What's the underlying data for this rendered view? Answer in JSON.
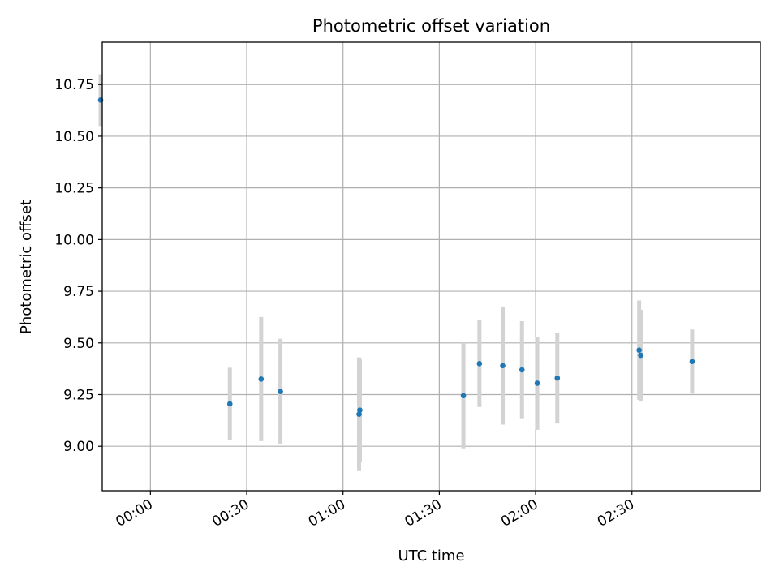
{
  "chart_data": {
    "type": "scatter",
    "title": "Photometric offset variation",
    "xlabel": "UTC time",
    "ylabel": "Photometric offset",
    "grid": true,
    "x_time_range": [
      "-00:15:00",
      "03:10:00"
    ],
    "ylim": [
      8.785,
      10.955
    ],
    "x_ticks": [
      {
        "time": "00:00:00",
        "label": "00:00"
      },
      {
        "time": "00:30:00",
        "label": "00:30"
      },
      {
        "time": "01:00:00",
        "label": "01:00"
      },
      {
        "time": "01:30:00",
        "label": "01:30"
      },
      {
        "time": "02:00:00",
        "label": "02:00"
      },
      {
        "time": "02:30:00",
        "label": "02:30"
      }
    ],
    "y_ticks": [
      {
        "value": 9.0,
        "label": "9.00"
      },
      {
        "value": 9.25,
        "label": "9.25"
      },
      {
        "value": 9.5,
        "label": "9.50"
      },
      {
        "value": 9.75,
        "label": "9.75"
      },
      {
        "value": 10.0,
        "label": "10.00"
      },
      {
        "value": 10.25,
        "label": "10.25"
      },
      {
        "value": 10.5,
        "label": "10.50"
      },
      {
        "value": 10.75,
        "label": "10.75"
      }
    ],
    "points": [
      {
        "time": "-00:15:30",
        "y": 10.675,
        "err": 0.125
      },
      {
        "time": "00:24:45",
        "y": 9.205,
        "err": 0.175
      },
      {
        "time": "00:34:30",
        "y": 9.325,
        "err": 0.3
      },
      {
        "time": "00:40:30",
        "y": 9.265,
        "err": 0.255
      },
      {
        "time": "01:05:00",
        "y": 9.155,
        "err": 0.275
      },
      {
        "time": "01:05:15",
        "y": 9.175,
        "err": 0.25
      },
      {
        "time": "01:37:30",
        "y": 9.245,
        "err": 0.255
      },
      {
        "time": "01:42:30",
        "y": 9.4,
        "err": 0.21
      },
      {
        "time": "01:49:45",
        "y": 9.39,
        "err": 0.285
      },
      {
        "time": "01:55:45",
        "y": 9.37,
        "err": 0.235
      },
      {
        "time": "02:00:30",
        "y": 9.305,
        "err": 0.225
      },
      {
        "time": "02:06:45",
        "y": 9.33,
        "err": 0.22
      },
      {
        "time": "02:32:15",
        "y": 9.465,
        "err": 0.24
      },
      {
        "time": "02:32:45",
        "y": 9.44,
        "err": 0.22
      },
      {
        "time": "02:48:45",
        "y": 9.41,
        "err": 0.155
      }
    ],
    "colors": {
      "point": "#1f77b4",
      "errorbar": "#d3d3d3",
      "grid": "#b0b0b0"
    }
  }
}
